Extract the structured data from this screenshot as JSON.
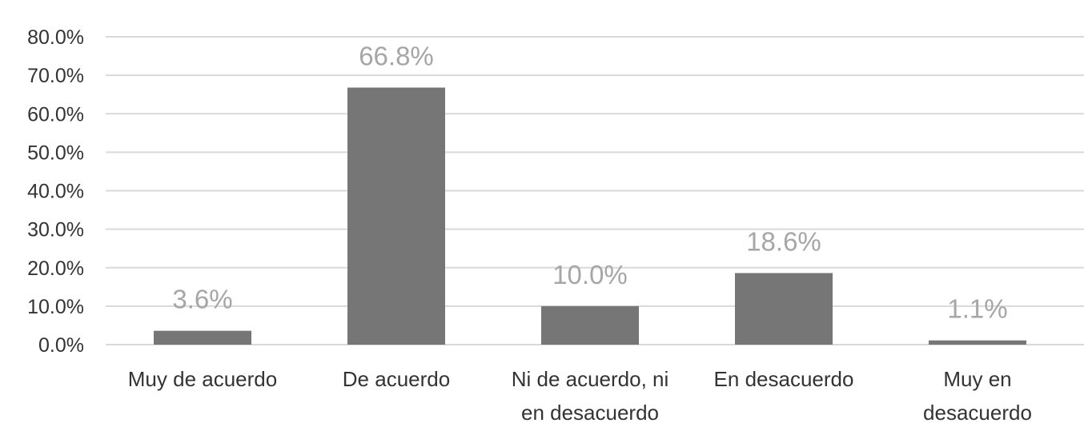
{
  "chart_data": {
    "type": "bar",
    "categories": [
      [
        "Muy de acuerdo"
      ],
      [
        "De acuerdo"
      ],
      [
        "Ni de acuerdo, ni",
        "en desacuerdo"
      ],
      [
        "En desacuerdo"
      ],
      [
        "Muy en",
        "desacuerdo"
      ]
    ],
    "values": [
      3.6,
      66.8,
      10.0,
      18.6,
      1.1
    ],
    "data_labels": [
      "3.6%",
      "66.8%",
      "10.0%",
      "18.6%",
      "1.1%"
    ],
    "y_ticks": [
      "0.0%",
      "10.0%",
      "20.0%",
      "30.0%",
      "40.0%",
      "50.0%",
      "60.0%",
      "70.0%",
      "80.0%"
    ],
    "ylim": [
      0,
      80
    ],
    "grid": true,
    "legend": "none",
    "colors": {
      "bar": "#767676",
      "grid": "#d9d9d9",
      "data_label": "#a6a6a6",
      "axis_text": "#333333"
    }
  }
}
